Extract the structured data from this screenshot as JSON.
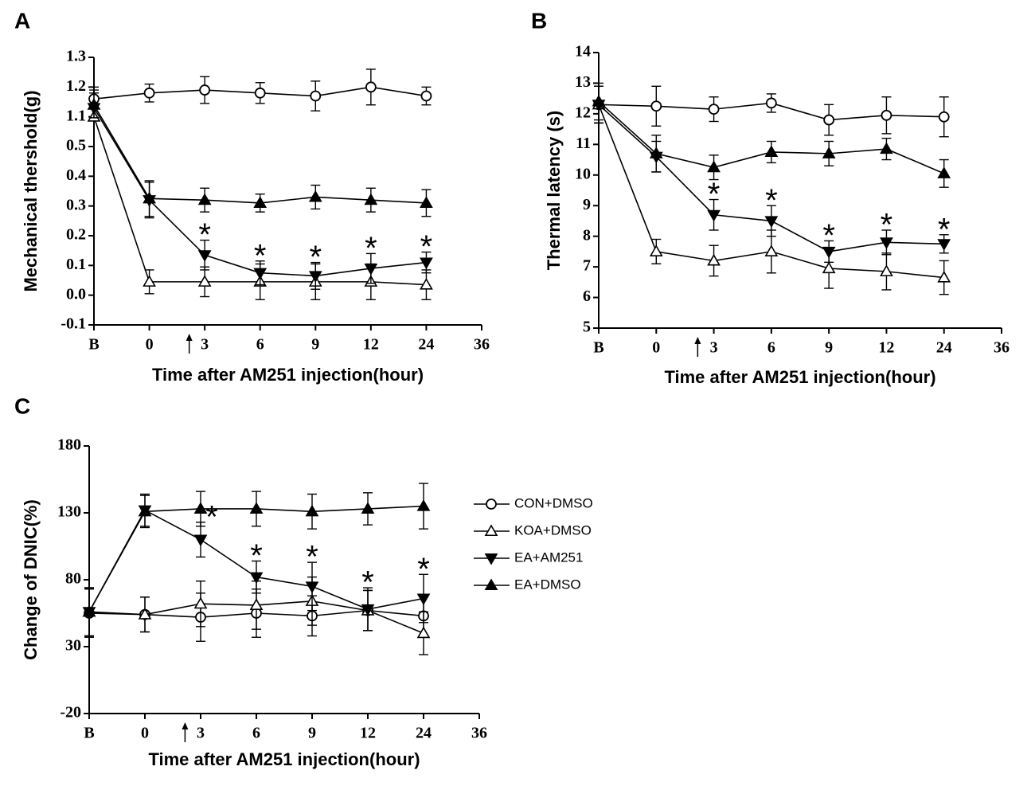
{
  "chart_data": [
    {
      "type": "line",
      "panel": "A",
      "y_label": "Mechanical thershold(g)",
      "x_label": "Time after AM251 injection(hour)",
      "categories": [
        "B",
        "0",
        "3",
        "6",
        "9",
        "12",
        "24",
        "36"
      ],
      "ylim": [
        -0.1,
        1.3
      ],
      "yticks": [
        -0.1,
        {
          "value": 0.0,
          "label": "0.0"
        },
        0.1,
        0.2,
        0.3,
        0.4,
        0.5,
        1.1,
        1.2,
        1.3
      ],
      "series": [
        {
          "marker": "circle-open",
          "color": "#000000",
          "values": [
            1.16,
            1.18,
            1.19,
            1.18,
            1.17,
            1.2,
            1.17,
            null
          ],
          "errors": [
            0.03,
            0.03,
            0.045,
            0.035,
            0.05,
            0.06,
            0.03,
            null
          ]
        },
        {
          "marker": "triangle-up-open",
          "color": "#000000",
          "values": [
            1.1,
            0.045,
            0.045,
            0.045,
            0.045,
            0.045,
            0.035,
            null
          ],
          "errors": [
            0.04,
            0.04,
            0.05,
            0.06,
            0.06,
            0.06,
            0.05,
            null
          ]
        },
        {
          "marker": "triangle-down",
          "color": "#000000",
          "values": [
            1.13,
            0.32,
            0.135,
            0.075,
            0.065,
            0.09,
            0.11,
            null
          ],
          "errors": [
            0.05,
            0.06,
            0.05,
            0.04,
            0.045,
            0.05,
            0.035,
            null
          ]
        },
        {
          "marker": "triangle-up",
          "color": "#000000",
          "values": [
            1.14,
            0.325,
            0.32,
            0.31,
            0.33,
            0.32,
            0.31,
            null
          ],
          "errors": [
            0.06,
            0.06,
            0.04,
            0.03,
            0.04,
            0.04,
            0.045,
            null
          ]
        }
      ],
      "annotations": [
        {
          "text": "*",
          "at": "3"
        },
        {
          "text": "*",
          "at": "6"
        },
        {
          "text": "*",
          "at": "9"
        },
        {
          "text": "*",
          "at": "12"
        },
        {
          "text": "*",
          "at": "24"
        }
      ]
    },
    {
      "type": "line",
      "panel": "B",
      "y_label": "Thermal latency (s)",
      "x_label": "Time after AM251 injection(hour)",
      "categories": [
        "B",
        "0",
        "3",
        "6",
        "9",
        "12",
        "24",
        "36"
      ],
      "ylim": [
        5,
        14
      ],
      "yticks": [
        5,
        6,
        7,
        8,
        9,
        10,
        11,
        12,
        13,
        14
      ],
      "series": [
        {
          "marker": "circle-open",
          "color": "#000000",
          "values": [
            12.3,
            12.25,
            12.15,
            12.35,
            11.8,
            11.95,
            11.9,
            null
          ],
          "errors": [
            0.6,
            0.65,
            0.4,
            0.3,
            0.5,
            0.6,
            0.65,
            null
          ]
        },
        {
          "marker": "triangle-up-open",
          "color": "#000000",
          "values": [
            12.3,
            7.5,
            7.2,
            7.5,
            6.95,
            6.85,
            6.65,
            null
          ],
          "errors": [
            0.6,
            0.4,
            0.5,
            0.7,
            0.65,
            0.6,
            0.55,
            null
          ]
        },
        {
          "marker": "triangle-down",
          "color": "#000000",
          "values": [
            12.3,
            10.6,
            8.7,
            8.5,
            7.5,
            7.8,
            7.75,
            null
          ],
          "errors": [
            0.6,
            0.5,
            0.5,
            0.5,
            0.35,
            0.4,
            0.3,
            null
          ]
        },
        {
          "marker": "triangle-up",
          "color": "#000000",
          "values": [
            12.4,
            10.7,
            10.25,
            10.75,
            10.7,
            10.85,
            10.05,
            null
          ],
          "errors": [
            0.6,
            0.6,
            0.4,
            0.35,
            0.4,
            0.35,
            0.45,
            null
          ]
        }
      ],
      "annotations": [
        {
          "text": "*",
          "at": "3"
        },
        {
          "text": "*",
          "at": "6"
        },
        {
          "text": "*",
          "at": "9"
        },
        {
          "text": "*",
          "at": "12"
        },
        {
          "text": "*",
          "at": "24"
        }
      ]
    },
    {
      "type": "line",
      "panel": "C",
      "y_label": "Change of DNIC(%)",
      "x_label": "Time after AM251 injection(hour)",
      "categories": [
        "B",
        "0",
        "3",
        "6",
        "9",
        "12",
        "24",
        "36"
      ],
      "ylim": [
        -20,
        180
      ],
      "yticks": [
        -20,
        30,
        80,
        130,
        180
      ],
      "series": [
        {
          "name": "CON+DMSO",
          "marker": "circle-open",
          "color": "#000000",
          "values": [
            55,
            54,
            52,
            55,
            53,
            57,
            53,
            null
          ],
          "errors": [
            18,
            13,
            18,
            18,
            15,
            15,
            15,
            null
          ]
        },
        {
          "name": "KOA+DMSO",
          "marker": "triangle-up-open",
          "color": "#000000",
          "values": [
            56,
            54,
            62,
            61,
            64,
            57,
            40,
            null
          ],
          "errors": [
            18,
            13,
            17,
            18,
            18,
            15,
            16,
            null
          ]
        },
        {
          "name": "EA+AM251",
          "marker": "triangle-down",
          "color": "#000000",
          "values": [
            56,
            132,
            110,
            82,
            75,
            58,
            66,
            null
          ],
          "errors": [
            18,
            12,
            13,
            12,
            18,
            16,
            18,
            null
          ]
        },
        {
          "name": "EA+DMSO",
          "marker": "triangle-up",
          "color": "#000000",
          "values": [
            56,
            131,
            133,
            133,
            131,
            133,
            135,
            null
          ],
          "errors": [
            18,
            12,
            13,
            13,
            13,
            12,
            17,
            null
          ]
        }
      ],
      "annotations": [
        {
          "text": "*",
          "at": "3"
        },
        {
          "text": "*",
          "at": "6"
        },
        {
          "text": "*",
          "at": "9"
        },
        {
          "text": "*",
          "at": "12"
        },
        {
          "text": "*",
          "at": "24"
        }
      ],
      "legend": "right"
    }
  ]
}
